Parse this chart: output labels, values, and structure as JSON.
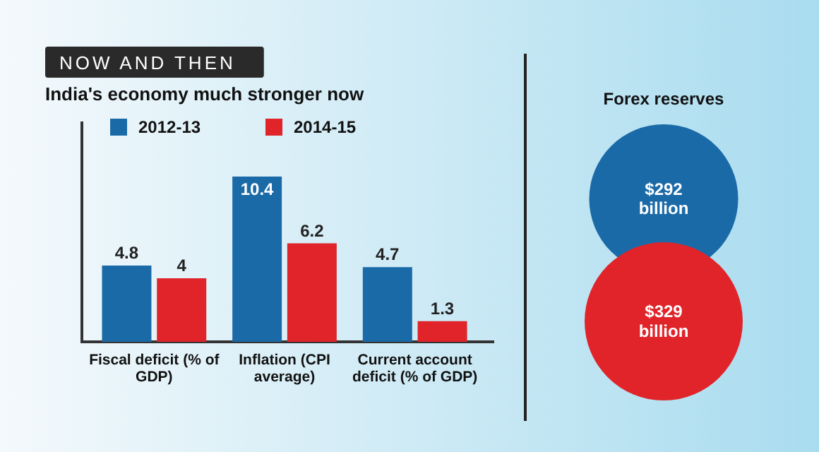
{
  "chart_data": [
    {
      "type": "bar",
      "title": "NOW AND THEN",
      "subtitle": "India's economy much stronger now",
      "categories": [
        "Fiscal deficit (% of GDP)",
        "Inflation (CPI average)",
        "Current account deficit (% of GDP)"
      ],
      "series": [
        {
          "name": "2012-13",
          "color": "#1b6aa8",
          "values": [
            4.8,
            10.4,
            4.7
          ]
        },
        {
          "name": "2014-15",
          "color": "#e0242a",
          "values": [
            4,
            6.2,
            1.3
          ]
        }
      ],
      "data_labels": true,
      "legend": "top left"
    },
    {
      "type": "other",
      "title": "Forex reserves",
      "values": [
        292,
        329
      ],
      "colors": [
        "#1b6aa8",
        "#e0242a"
      ],
      "value_labels": [
        "$292 billion",
        "$329 billion"
      ]
    }
  ]
}
